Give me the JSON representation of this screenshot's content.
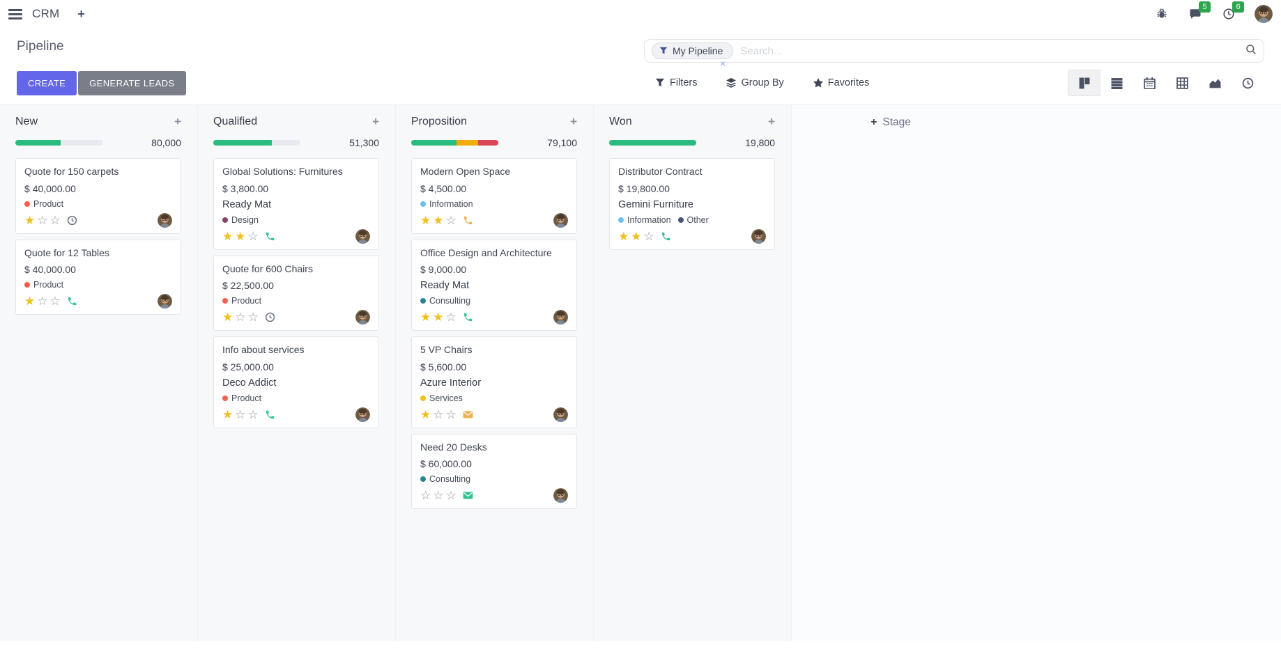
{
  "navbar": {
    "app_name": "CRM",
    "add_label": "+",
    "messages_badge": "5",
    "activities_badge": "6",
    "icons": [
      "menu-icon",
      "plus-icon",
      "bug-icon",
      "messages-icon",
      "activities-clock-icon",
      "user-avatar"
    ]
  },
  "control_panel": {
    "title": "Pipeline",
    "create_label": "CREATE",
    "generate_leads_label": "GENERATE LEADS",
    "search": {
      "facet_label": "My Pipeline",
      "facet_remove": "×",
      "placeholder": "Search..."
    },
    "filters_label": "Filters",
    "group_by_label": "Group By",
    "favorites_label": "Favorites",
    "view_switcher": [
      "kanban-view-icon",
      "list-view-icon",
      "calendar-view-icon",
      "pivot-view-icon",
      "graph-view-icon",
      "activity-view-icon"
    ],
    "active_view": "kanban"
  },
  "colors": {
    "accent_primary": "#6366e8",
    "secondary_button": "#797e88",
    "badge_green": "#2da44e",
    "progress_green": "#2abb7f",
    "progress_orange": "#efae0c",
    "progress_red": "#dc4458",
    "progress_track": "#e7eaee",
    "star_gold": "#f0c020",
    "activity_green": "#33c48d",
    "activity_orange": "#eeb152",
    "activity_gray": "#6b7280"
  },
  "kanban": {
    "add_stage_label": "Stage",
    "columns": [
      {
        "name": "New",
        "total": "80,000",
        "progress_segments": [
          {
            "color": "#2abb7f",
            "pct": 52
          }
        ],
        "cards": [
          {
            "title": "Quote for 150 carpets",
            "amount": "$ 40,000.00",
            "partner": "",
            "tags": [
              {
                "label": "Product",
                "color": "#f06050"
              }
            ],
            "stars": 1,
            "activity": {
              "icon": "clock-icon",
              "color": "#6b7280"
            }
          },
          {
            "title": "Quote for 12 Tables",
            "amount": "$ 40,000.00",
            "partner": "",
            "tags": [
              {
                "label": "Product",
                "color": "#f06050"
              }
            ],
            "stars": 1,
            "activity": {
              "icon": "phone-icon",
              "color": "#33c48d"
            }
          }
        ]
      },
      {
        "name": "Qualified",
        "total": "51,300",
        "progress_segments": [
          {
            "color": "#2abb7f",
            "pct": 67
          }
        ],
        "cards": [
          {
            "title": "Global Solutions: Furnitures",
            "amount": "$ 3,800.00",
            "partner": "Ready Mat",
            "tags": [
              {
                "label": "Design",
                "color": "#814968"
              }
            ],
            "stars": 2,
            "activity": {
              "icon": "phone-icon",
              "color": "#33c48d"
            }
          },
          {
            "title": "Quote for 600 Chairs",
            "amount": "$ 22,500.00",
            "partner": "",
            "tags": [
              {
                "label": "Product",
                "color": "#f06050"
              }
            ],
            "stars": 1,
            "activity": {
              "icon": "clock-icon",
              "color": "#6b7280"
            }
          },
          {
            "title": "Info about services",
            "amount": "$ 25,000.00",
            "partner": "Deco Addict",
            "tags": [
              {
                "label": "Product",
                "color": "#f06050"
              }
            ],
            "stars": 1,
            "activity": {
              "icon": "phone-icon",
              "color": "#33c48d"
            }
          }
        ]
      },
      {
        "name": "Proposition",
        "total": "79,100",
        "progress_segments": [
          {
            "color": "#2abb7f",
            "pct": 52
          },
          {
            "color": "#efae0c",
            "pct": 25
          },
          {
            "color": "#dc4458",
            "pct": 23
          }
        ],
        "cards": [
          {
            "title": "Modern Open Space",
            "amount": "$ 4,500.00",
            "partner": "",
            "tags": [
              {
                "label": "Information",
                "color": "#6cc1ed"
              }
            ],
            "stars": 2,
            "activity": {
              "icon": "phone-icon",
              "color": "#eeb152"
            }
          },
          {
            "title": "Office Design and Architecture",
            "amount": "$ 9,000.00",
            "partner": "Ready Mat",
            "tags": [
              {
                "label": "Consulting",
                "color": "#2c8397"
              }
            ],
            "stars": 2,
            "activity": {
              "icon": "phone-icon",
              "color": "#33c48d"
            }
          },
          {
            "title": "5 VP Chairs",
            "amount": "$ 5,600.00",
            "partner": "Azure Interior",
            "tags": [
              {
                "label": "Services",
                "color": "#efc11a"
              }
            ],
            "stars": 1,
            "activity": {
              "icon": "envelope-icon",
              "color": "#eeb152"
            }
          },
          {
            "title": "Need 20 Desks",
            "amount": "$ 60,000.00",
            "partner": "",
            "tags": [
              {
                "label": "Consulting",
                "color": "#2c8397"
              }
            ],
            "stars": 0,
            "activity": {
              "icon": "envelope-icon",
              "color": "#33c48d"
            }
          }
        ]
      },
      {
        "name": "Won",
        "total": "19,800",
        "progress_segments": [
          {
            "color": "#2abb7f",
            "pct": 100
          }
        ],
        "cards": [
          {
            "title": "Distributor Contract",
            "amount": "$ 19,800.00",
            "partner": "Gemini Furniture",
            "tags": [
              {
                "label": "Information",
                "color": "#6cc1ed"
              },
              {
                "label": "Other",
                "color": "#475577"
              }
            ],
            "stars": 2,
            "activity": {
              "icon": "phone-icon",
              "color": "#33c48d"
            }
          }
        ]
      }
    ]
  }
}
